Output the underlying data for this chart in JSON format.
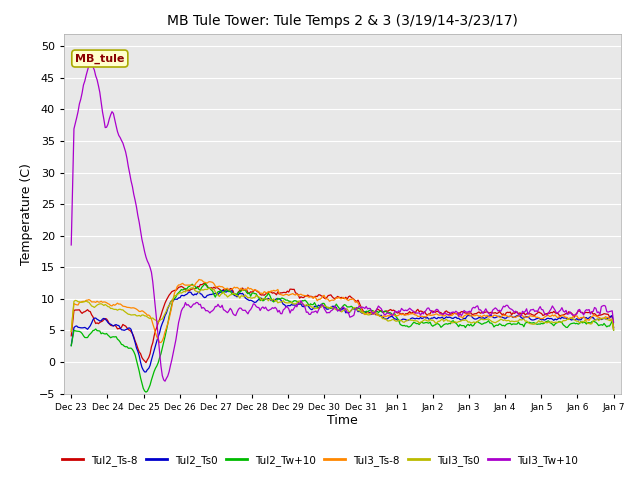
{
  "title": "MB Tule Tower: Tule Temps 2 & 3 (3/19/14-3/23/17)",
  "xlabel": "Time",
  "ylabel": "Temperature (C)",
  "ylim": [
    -5,
    52
  ],
  "yticks": [
    -5,
    0,
    5,
    10,
    15,
    20,
    25,
    30,
    35,
    40,
    45,
    50
  ],
  "plot_bg_color": "#e8e8e8",
  "legend_labels": [
    "Tul2_Ts-8",
    "Tul2_Ts0",
    "Tul2_Tw+10",
    "Tul3_Ts-8",
    "Tul3_Ts0",
    "Tul3_Tw+10"
  ],
  "legend_colors": [
    "#cc0000",
    "#0000cc",
    "#00bb00",
    "#ff8800",
    "#bbbb00",
    "#aa00cc"
  ],
  "annotation_text": "MB_tule",
  "num_points": 400,
  "xtick_labels": [
    "Dec 23",
    "Dec 24",
    "Dec 25",
    "Dec 26",
    "Dec 27",
    "Dec 28",
    "Dec 29",
    "Dec 30",
    "Dec 31",
    "Jan 1",
    "Jan 2",
    "Jan 3",
    "Jan 4",
    "Jan 5",
    "Jan 6",
    "Jan 7"
  ]
}
